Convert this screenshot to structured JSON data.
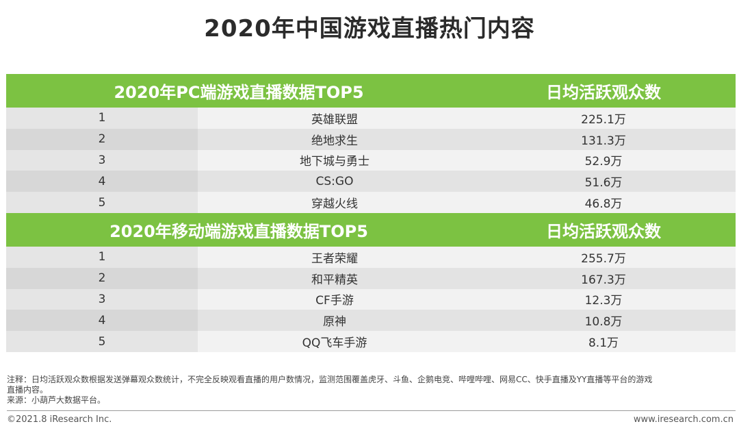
{
  "title": "2020年中国游戏直播热门内容",
  "pc": {
    "header_left": "2020年PC端游戏直播数据TOP5",
    "header_right": "日均活跃观众数",
    "rows": [
      {
        "rank": "1",
        "name": "英雄联盟",
        "value": "225.1万"
      },
      {
        "rank": "2",
        "name": "绝地求生",
        "value": "131.3万"
      },
      {
        "rank": "3",
        "name": "地下城与勇士",
        "value": "52.9万"
      },
      {
        "rank": "4",
        "name": "CS:GO",
        "value": "51.6万"
      },
      {
        "rank": "5",
        "name": "穿越火线",
        "value": "46.8万"
      }
    ]
  },
  "mobile": {
    "header_left": "2020年移动端游戏直播数据TOP5",
    "header_right": "日均活跃观众数",
    "rows": [
      {
        "rank": "1",
        "name": "王者荣耀",
        "value": "255.7万"
      },
      {
        "rank": "2",
        "name": "和平精英",
        "value": "167.3万"
      },
      {
        "rank": "3",
        "name": "CF手游",
        "value": "12.3万"
      },
      {
        "rank": "4",
        "name": "原神",
        "value": "10.8万"
      },
      {
        "rank": "5",
        "name": "QQ飞车手游",
        "value": "8.1万"
      }
    ]
  },
  "note_line1": "注释：日均活跃观众数根据发送弹幕观众数统计，不完全反映观看直播的用户数情况，监测范围覆盖虎牙、斗鱼、企鹅电竞、哔哩哔哩、网易CC、快手直播及YY直播等平台的游戏",
  "note_line2": "直播内容。",
  "source": "来源：小葫芦大数据平台。",
  "footer_left": "©2021.8 iResearch Inc.",
  "footer_right": "www.iresearch.com.cn",
  "colors": {
    "header_green": "#7cc242"
  }
}
